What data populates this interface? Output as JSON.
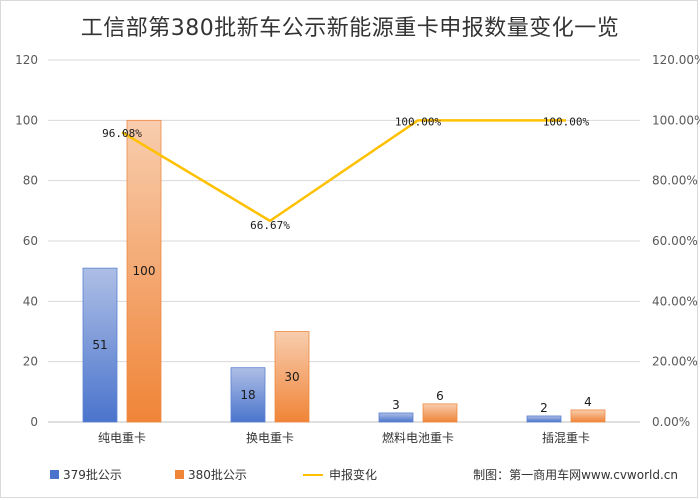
{
  "chart_data": {
    "type": "bar",
    "title": "工信部第380批新车公示新能源重卡申报数量变化一览",
    "categories": [
      "纯电重卡",
      "换电重卡",
      "燃料电池重卡",
      "插混重卡"
    ],
    "series": [
      {
        "name": "379批公示",
        "type": "bar",
        "values": [
          51,
          18,
          3,
          2
        ],
        "color": "#4472c4"
      },
      {
        "name": "380批公示",
        "type": "bar",
        "values": [
          100,
          30,
          6,
          4
        ],
        "color": "#ed7d31"
      },
      {
        "name": "申报变化",
        "type": "line",
        "axis": "right",
        "values": [
          96.08,
          66.67,
          100.0,
          100.0
        ],
        "labels": [
          "96.08%",
          "66.67%",
          "100.00%",
          "100.00%"
        ],
        "color": "#ffc000"
      }
    ],
    "left_axis": {
      "min": 0,
      "max": 120,
      "step": 20,
      "ticks": [
        "0",
        "20",
        "40",
        "60",
        "80",
        "100",
        "120"
      ]
    },
    "right_axis": {
      "min": 0,
      "max": 120,
      "step": 20,
      "ticks": [
        "0.00%",
        "20.00%",
        "40.00%",
        "60.00%",
        "80.00%",
        "100.00%",
        "120.00%"
      ]
    },
    "grid": true,
    "legend_position": "bottom-left",
    "credit": "制图：第一商用车网www.cvworld.cn"
  }
}
